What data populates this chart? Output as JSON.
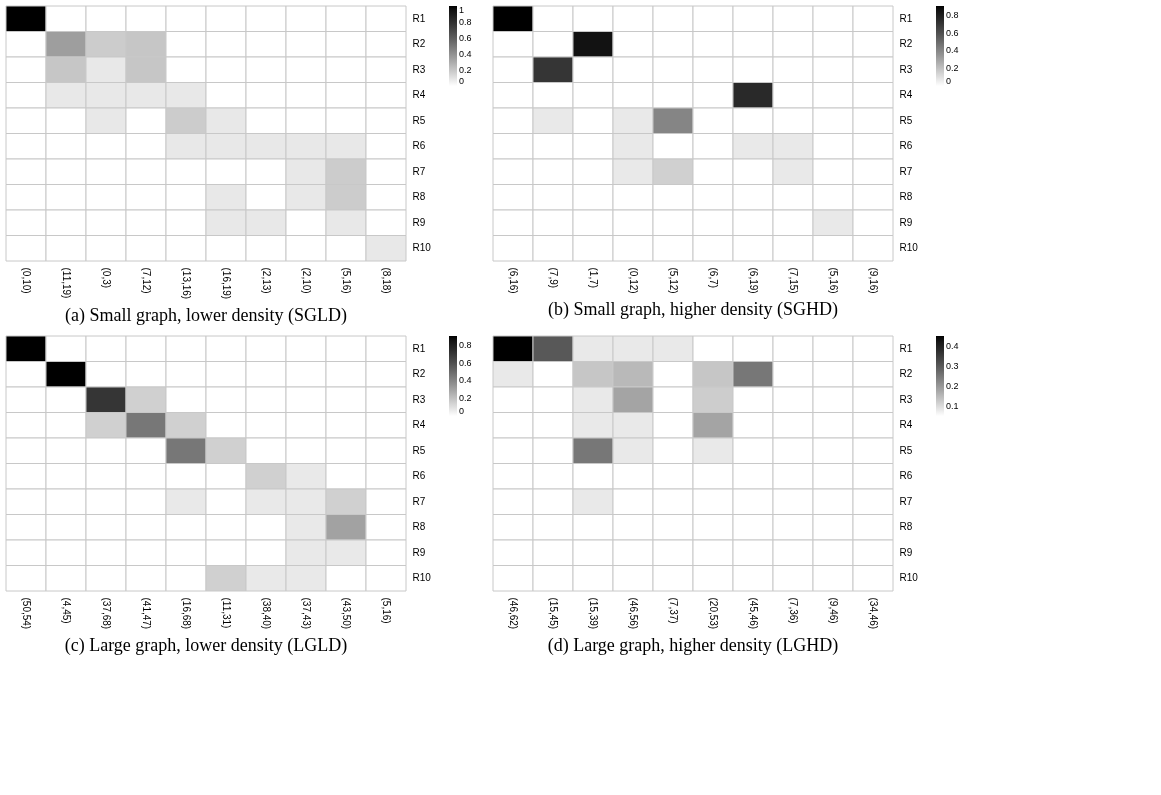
{
  "chart_data": [
    {
      "type": "heatmap",
      "title": "(a) Small graph, lower density (SGLD)",
      "categories": [
        "(0,10)",
        "(11,19)",
        "(0,3)",
        "(7,12)",
        "(13,16)",
        "(16,19)",
        "(2,13)",
        "(2,10)",
        "(5,16)",
        "(8,18)"
      ],
      "y_categories": [
        "R1",
        "R2",
        "R3",
        "R4",
        "R5",
        "R6",
        "R7",
        "R8",
        "R9",
        "R10"
      ],
      "clim": [
        0,
        1
      ],
      "cticks": [
        0,
        0.2,
        0.4,
        0.6,
        0.8,
        1
      ],
      "cells": [
        [
          1,
          null,
          null,
          null,
          null,
          null,
          null,
          null,
          null,
          null
        ],
        [
          null,
          0.35,
          0.18,
          0.2,
          null,
          null,
          null,
          null,
          null,
          null
        ],
        [
          null,
          0.2,
          0.08,
          0.2,
          null,
          null,
          null,
          null,
          null,
          null
        ],
        [
          null,
          0.08,
          0.08,
          0.08,
          0.08,
          null,
          null,
          null,
          null,
          null
        ],
        [
          null,
          null,
          0.08,
          null,
          0.18,
          0.08,
          null,
          null,
          null,
          null
        ],
        [
          null,
          null,
          null,
          null,
          0.08,
          0.08,
          0.08,
          0.08,
          0.08,
          null
        ],
        [
          null,
          null,
          null,
          null,
          null,
          null,
          null,
          0.08,
          0.18,
          null
        ],
        [
          null,
          null,
          null,
          null,
          null,
          0.08,
          null,
          0.08,
          0.18,
          null
        ],
        [
          null,
          null,
          null,
          null,
          null,
          0.08,
          0.08,
          null,
          0.08,
          null
        ],
        [
          null,
          null,
          null,
          null,
          null,
          null,
          null,
          null,
          null,
          0.08
        ]
      ]
    },
    {
      "type": "heatmap",
      "title": "(b) Small graph, higher density (SGHD)",
      "categories": [
        "(6,16)",
        "(7,9)",
        "(1,7)",
        "(0,12)",
        "(5,12)",
        "(6,7)",
        "(6,19)",
        "(7,15)",
        "(5,16)",
        "(9,16)"
      ],
      "y_categories": [
        "R1",
        "R2",
        "R3",
        "R4",
        "R5",
        "R6",
        "R7",
        "R8",
        "R9",
        "R10"
      ],
      "clim": [
        0,
        0.9
      ],
      "cticks": [
        0,
        0.2,
        0.4,
        0.6,
        0.8
      ],
      "cells": [
        [
          0.9,
          null,
          null,
          null,
          null,
          null,
          null,
          null,
          null,
          null
        ],
        [
          null,
          null,
          0.85,
          null,
          null,
          null,
          null,
          null,
          null,
          null
        ],
        [
          null,
          0.7,
          null,
          null,
          null,
          null,
          null,
          null,
          null,
          null
        ],
        [
          null,
          null,
          null,
          null,
          null,
          null,
          0.75,
          null,
          null,
          null
        ],
        [
          null,
          0.07,
          null,
          0.07,
          0.4,
          null,
          null,
          null,
          null,
          null
        ],
        [
          null,
          null,
          null,
          0.07,
          null,
          null,
          0.07,
          0.07,
          null,
          null
        ],
        [
          null,
          null,
          null,
          0.07,
          0.15,
          null,
          null,
          0.07,
          null,
          null
        ],
        [
          null,
          null,
          null,
          null,
          null,
          null,
          null,
          null,
          null,
          null
        ],
        [
          null,
          null,
          null,
          null,
          null,
          null,
          null,
          null,
          0.07,
          null
        ],
        [
          null,
          null,
          null,
          null,
          null,
          null,
          null,
          null,
          null,
          null
        ]
      ]
    },
    {
      "type": "heatmap",
      "title": "(c) Large graph, lower density (LGLD)",
      "categories": [
        "(50,54)",
        "(4,45)",
        "(37,68)",
        "(41,47)",
        "(16,68)",
        "(11,31)",
        "(38,40)",
        "(37,43)",
        "(43,50)",
        "(5,16)"
      ],
      "y_categories": [
        "R1",
        "R2",
        "R3",
        "R4",
        "R5",
        "R6",
        "R7",
        "R8",
        "R9",
        "R10"
      ],
      "clim": [
        0,
        0.9
      ],
      "cticks": [
        0,
        0.2,
        0.4,
        0.6,
        0.8
      ],
      "cells": [
        [
          0.9,
          null,
          null,
          null,
          null,
          null,
          null,
          null,
          null,
          null
        ],
        [
          null,
          0.9,
          null,
          null,
          null,
          null,
          null,
          null,
          null,
          null
        ],
        [
          null,
          null,
          0.7,
          0.15,
          null,
          null,
          null,
          null,
          null,
          null
        ],
        [
          null,
          null,
          0.15,
          0.45,
          0.15,
          null,
          null,
          null,
          null,
          null
        ],
        [
          null,
          null,
          null,
          null,
          0.45,
          0.15,
          null,
          null,
          null,
          null
        ],
        [
          null,
          null,
          null,
          null,
          null,
          null,
          0.15,
          0.07,
          null,
          null
        ],
        [
          null,
          null,
          null,
          null,
          0.07,
          null,
          0.07,
          0.07,
          0.15,
          null
        ],
        [
          null,
          null,
          null,
          null,
          null,
          null,
          null,
          0.07,
          0.3,
          null
        ],
        [
          null,
          null,
          null,
          null,
          null,
          null,
          null,
          0.07,
          0.07,
          null
        ],
        [
          null,
          null,
          null,
          null,
          null,
          0.15,
          0.07,
          0.07,
          null,
          null
        ]
      ]
    },
    {
      "type": "heatmap",
      "title": "(d) Large graph, higher density (LGHD)",
      "categories": [
        "(46,62)",
        "(15,45)",
        "(15,39)",
        "(46,56)",
        "(7,37)",
        "(20,53)",
        "(45,46)",
        "(7,36)",
        "(9,46)",
        "(34,46)"
      ],
      "y_categories": [
        "R1",
        "R2",
        "R3",
        "R4",
        "R5",
        "R6",
        "R7",
        "R8",
        "R9",
        "R10"
      ],
      "clim": [
        0.05,
        0.45
      ],
      "cticks": [
        0.1,
        0.2,
        0.3,
        0.4
      ],
      "cells": [
        [
          0.45,
          0.3,
          0.08,
          0.08,
          0.08,
          null,
          null,
          null,
          null,
          null
        ],
        [
          0.08,
          null,
          0.13,
          0.15,
          null,
          0.13,
          0.25,
          null,
          null,
          null
        ],
        [
          null,
          null,
          0.08,
          0.18,
          null,
          0.12,
          null,
          null,
          null,
          null
        ],
        [
          null,
          null,
          0.08,
          0.08,
          null,
          0.18,
          null,
          null,
          null,
          null
        ],
        [
          null,
          null,
          0.25,
          0.08,
          null,
          0.08,
          null,
          null,
          null,
          null
        ],
        [
          null,
          null,
          null,
          null,
          null,
          null,
          null,
          null,
          null,
          null
        ],
        [
          null,
          null,
          0.08,
          null,
          null,
          null,
          null,
          null,
          null,
          null
        ],
        [
          null,
          null,
          null,
          null,
          null,
          null,
          null,
          null,
          null,
          null
        ],
        [
          null,
          null,
          null,
          null,
          null,
          null,
          null,
          null,
          null,
          null
        ],
        [
          null,
          null,
          null,
          null,
          null,
          null,
          null,
          null,
          null,
          null
        ]
      ]
    }
  ]
}
